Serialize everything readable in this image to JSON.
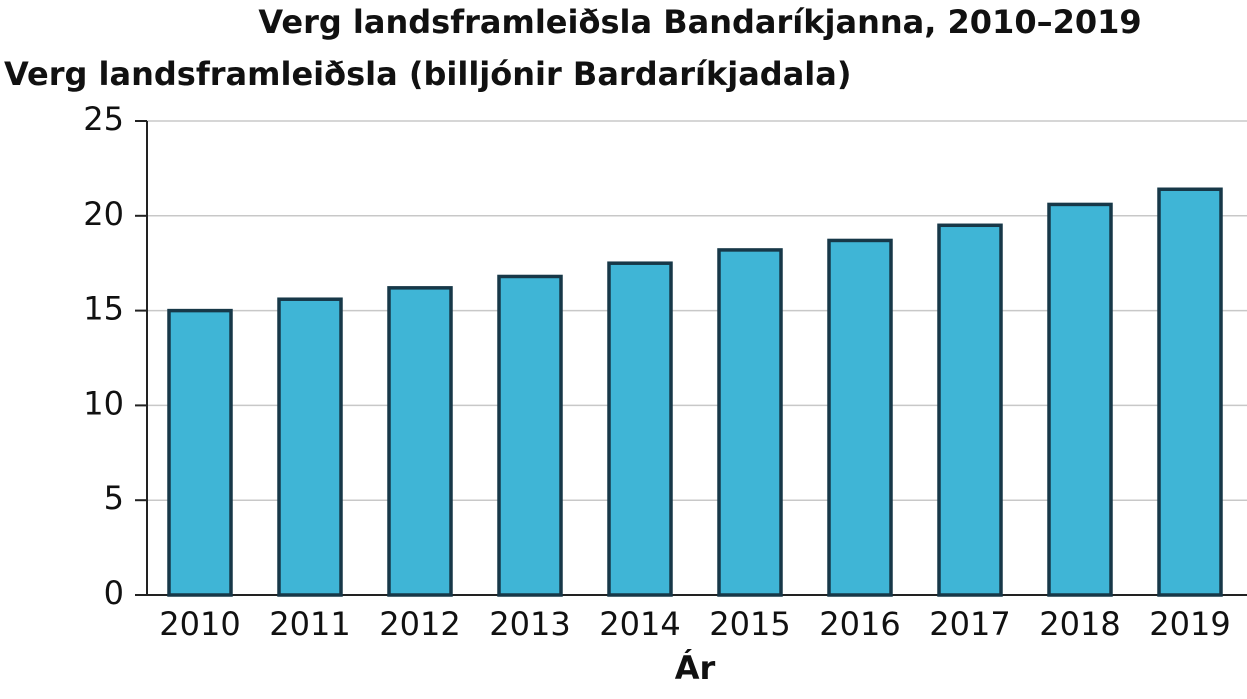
{
  "chart_data": {
    "type": "bar",
    "title": "Verg landsframleiðsla Bandaríkjanna, 2010–2019",
    "y_label": "Verg landsframleiðsla (billjónir Bardaríkjadala)",
    "x_label": "Ár",
    "categories": [
      "2010",
      "2011",
      "2012",
      "2013",
      "2014",
      "2015",
      "2016",
      "2017",
      "2018",
      "2019"
    ],
    "values": [
      15.0,
      15.6,
      16.2,
      16.8,
      17.5,
      18.2,
      18.7,
      19.5,
      20.6,
      21.4
    ],
    "color": "#3fb5d6",
    "ylim": [
      0,
      25
    ],
    "yticks": [
      0,
      5,
      10,
      15,
      20,
      25
    ],
    "grid": true
  }
}
